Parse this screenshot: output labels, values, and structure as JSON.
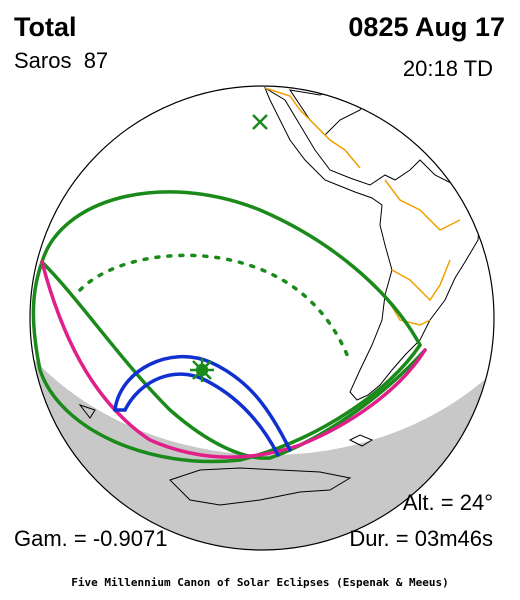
{
  "title": "Total",
  "saros": "Saros  87",
  "date": "0825 Aug 17",
  "time": "20:18 TD",
  "altitude": "Alt. = 24°",
  "gamma": "Gam. = -0.9071",
  "duration": "Dur. = 03m46s",
  "footer": "Five Millennium Canon of Solar Eclipses (Espenak & Meeus)"
}
